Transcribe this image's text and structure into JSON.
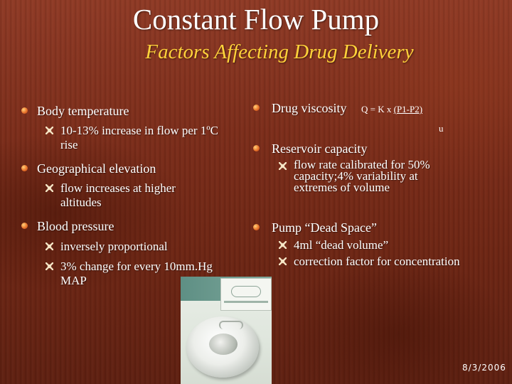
{
  "title": "Constant Flow Pump",
  "subtitle": "Factors Affecting Drug Delivery",
  "left_column": {
    "items": [
      {
        "label": "Body temperature",
        "sub": [
          "10-13% increase in flow per 1ºC rise"
        ]
      },
      {
        "label": "Geographical elevation",
        "sub": [
          "flow increases at higher altitudes"
        ]
      },
      {
        "label": "Blood pressure",
        "sub": [
          "inversely proportional",
          "3% change for every 10mm.Hg MAP"
        ]
      }
    ]
  },
  "right_column": {
    "items": [
      {
        "label": "Drug viscosity",
        "sub": []
      },
      {
        "label": "Reservoir capacity",
        "sub": [
          "flow rate calibrated for 50% capacity;4% variability at extremes of volume"
        ]
      },
      {
        "label": "Pump “Dead Space”",
        "sub": [
          "4ml “dead volume”",
          "correction factor for concentration"
        ]
      }
    ]
  },
  "formula": {
    "lhs": "Q = K x ",
    "numerator": "(P1-P2)",
    "denominator": "u"
  },
  "date": "8/3/2006"
}
